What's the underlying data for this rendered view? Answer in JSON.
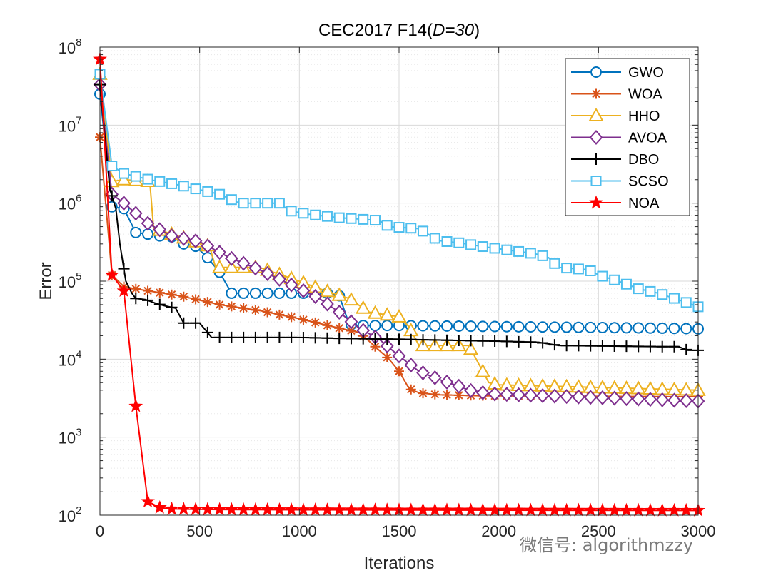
{
  "chart_data": {
    "type": "line",
    "title_prefix": "CEC2017 F14(",
    "title_italic": "D=30",
    "title_suffix": ")",
    "xlabel": "Iterations",
    "ylabel": "Error",
    "yscale": "log",
    "xlim": [
      0,
      3000
    ],
    "ylim": [
      100,
      100000000
    ],
    "xticks": [
      0,
      500,
      1000,
      1500,
      2000,
      2500,
      3000
    ],
    "xtick_labels": [
      "0",
      "500",
      "1000",
      "1500",
      "2000",
      "2500",
      "3000"
    ],
    "yticks": [
      100,
      1000,
      10000,
      100000,
      1000000,
      10000000,
      100000000
    ],
    "ytick_exps": [
      "2",
      "3",
      "4",
      "5",
      "6",
      "7",
      "8"
    ],
    "grid": true,
    "legend_position": "top-right",
    "series": [
      {
        "name": "GWO",
        "color": "#0072BD",
        "marker": "circle",
        "x": [
          0,
          60,
          120,
          180,
          240,
          300,
          360,
          420,
          480,
          540,
          600,
          660,
          1150,
          1200,
          1250,
          1300,
          1350,
          1500,
          2800,
          3000
        ],
        "y": [
          25000000,
          900000,
          850000,
          420000,
          400000,
          380000,
          370000,
          300000,
          280000,
          200000,
          130000,
          70000,
          70000,
          65000,
          28000,
          27000,
          27000,
          27000,
          25000,
          24500
        ]
      },
      {
        "name": "WOA",
        "color": "#D95319",
        "marker": "asterisk",
        "x": [
          0,
          60,
          120,
          200,
          400,
          600,
          800,
          1000,
          1200,
          1300,
          1350,
          1400,
          1450,
          1500,
          1550,
          1600,
          1700,
          1900,
          3000
        ],
        "y": [
          7000000,
          120000,
          85000,
          78000,
          65000,
          50000,
          42000,
          33000,
          25000,
          22000,
          17000,
          13000,
          10000,
          7000,
          4200,
          3700,
          3500,
          3400,
          3300
        ]
      },
      {
        "name": "HHO",
        "color": "#EDB120",
        "marker": "triangle",
        "x": [
          0,
          60,
          120,
          250,
          270,
          300,
          550,
          580,
          800,
          1000,
          1100,
          1250,
          1350,
          1500,
          1550,
          1600,
          1850,
          1950,
          2000,
          3000
        ],
        "y": [
          45000000,
          1900000,
          2000000,
          1900000,
          450000,
          450000,
          280000,
          150000,
          150000,
          100000,
          80000,
          60000,
          40000,
          35000,
          26000,
          15000,
          15000,
          5000,
          4700,
          4000
        ]
      },
      {
        "name": "AVOA",
        "color": "#7E2F8E",
        "marker": "diamond",
        "x": [
          0,
          60,
          120,
          240,
          360,
          500,
          650,
          800,
          1000,
          1100,
          1200,
          1300,
          1400,
          1500,
          1600,
          1700,
          1800,
          1850,
          1950,
          3000
        ],
        "y": [
          33000000,
          1300000,
          1000000,
          550000,
          380000,
          320000,
          200000,
          140000,
          80000,
          60000,
          40000,
          25000,
          18000,
          11000,
          7000,
          5500,
          4500,
          4000,
          3600,
          2900
        ]
      },
      {
        "name": "DBO",
        "color": "#000000",
        "marker": "plus",
        "x": [
          0,
          50,
          80,
          100,
          130,
          160,
          180,
          230,
          280,
          330,
          380,
          420,
          500,
          540,
          560,
          600,
          800,
          1000,
          1200,
          1500,
          2000,
          2200,
          2300,
          2800,
          2900,
          2950,
          3000
        ],
        "y": [
          33000000,
          1500000,
          850000,
          300000,
          100000,
          70000,
          60000,
          58000,
          52000,
          48000,
          45000,
          29000,
          29000,
          22000,
          19000,
          19000,
          19000,
          19000,
          18500,
          18000,
          17000,
          16500,
          15000,
          14500,
          14500,
          13000,
          13000
        ]
      },
      {
        "name": "SCSO",
        "color": "#4DBEEE",
        "marker": "square",
        "x": [
          0,
          60,
          120,
          250,
          400,
          600,
          700,
          900,
          950,
          1050,
          1200,
          1400,
          1450,
          1600,
          1700,
          1800,
          1950,
          2100,
          2200,
          2250,
          2300,
          2450,
          2500,
          2600,
          2700,
          2800,
          2900,
          3000
        ],
        "y": [
          45000000,
          3000000,
          2400000,
          2000000,
          1700000,
          1300000,
          1000000,
          1000000,
          800000,
          720000,
          650000,
          600000,
          500000,
          470000,
          330000,
          310000,
          270000,
          240000,
          220000,
          200000,
          150000,
          140000,
          120000,
          100000,
          80000,
          70000,
          58000,
          47000
        ]
      },
      {
        "name": "NOA",
        "color": "#FF0000",
        "marker": "star",
        "x": [
          0,
          60,
          120,
          180,
          240,
          300,
          360,
          600,
          1000,
          2000,
          3000
        ],
        "y": [
          70000000,
          120000,
          75000,
          2500,
          150,
          125,
          120,
          118,
          117,
          116,
          115
        ]
      }
    ]
  },
  "watermark": "微信号: algorithmzzy"
}
